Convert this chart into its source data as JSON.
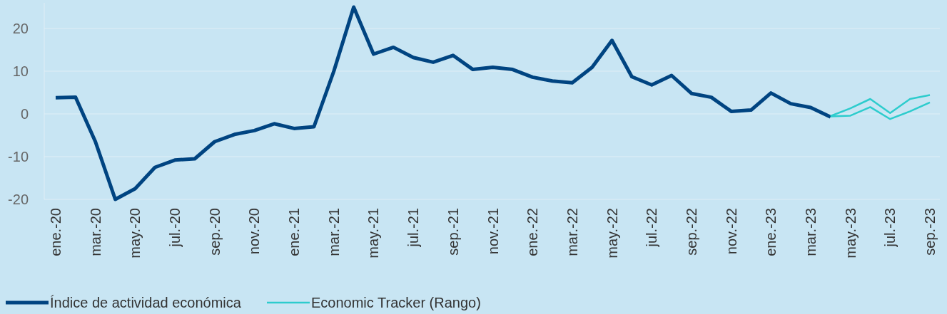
{
  "chart_data": {
    "type": "line",
    "categories": [
      "ene.-20",
      null,
      "mar.-20",
      null,
      "may.-20",
      null,
      "jul.-20",
      null,
      "sep.-20",
      null,
      "nov.-20",
      null,
      "ene.-21",
      null,
      "mar.-21",
      null,
      "may.-21",
      null,
      "jul.-21",
      null,
      "sep.-21",
      null,
      "nov.-21",
      null,
      "ene.-22",
      null,
      "mar.-22",
      null,
      "may.-22",
      null,
      "jul.-22",
      null,
      "sep.-22",
      null,
      "nov.-22",
      null,
      "ene.-23",
      null,
      "mar.-23",
      null,
      "may.-23",
      null,
      "jul.-23",
      null,
      "sep.-23"
    ],
    "series": [
      {
        "name": "Índice de actividad económica",
        "color": "#004481",
        "values": [
          3.8,
          3.9,
          -6.5,
          -20,
          -17.5,
          -12.5,
          -10.8,
          -10.5,
          -6.5,
          -4.8,
          -3.9,
          -2.3,
          -3.4,
          -3,
          10,
          25,
          14,
          15.6,
          13.2,
          12.1,
          13.7,
          10.4,
          10.9,
          10.4,
          8.6,
          7.7,
          7.3,
          10.9,
          17.2,
          8.7,
          6.8,
          9,
          4.8,
          3.9,
          0.6,
          0.9,
          4.9,
          2.4,
          1.5,
          -0.7,
          null,
          null,
          null,
          null,
          null
        ]
      },
      {
        "name": "Economic Tracker (Rango)",
        "color": "#2dcccd",
        "values": [
          null,
          null,
          null,
          null,
          null,
          null,
          null,
          null,
          null,
          null,
          null,
          null,
          null,
          null,
          null,
          null,
          null,
          null,
          null,
          null,
          null,
          null,
          null,
          null,
          null,
          null,
          null,
          null,
          null,
          null,
          null,
          null,
          null,
          null,
          null,
          null,
          null,
          null,
          null,
          -0.5,
          1.3,
          3.5,
          0.2,
          3.5,
          4.4
        ]
      },
      {
        "color": "#2dcccd",
        "values": [
          null,
          null,
          null,
          null,
          null,
          null,
          null,
          null,
          null,
          null,
          null,
          null,
          null,
          null,
          null,
          null,
          null,
          null,
          null,
          null,
          null,
          null,
          null,
          null,
          null,
          null,
          null,
          null,
          null,
          null,
          null,
          null,
          null,
          null,
          null,
          null,
          null,
          null,
          null,
          -0.6,
          -0.4,
          1.6,
          -1.2,
          0.6,
          2.7
        ]
      }
    ],
    "ylim": [
      -20,
      26
    ],
    "yticks": [
      -20,
      -10,
      0,
      10,
      20
    ],
    "grid": "y",
    "legend": "bottom",
    "marker": "none",
    "line_style": "solid"
  }
}
